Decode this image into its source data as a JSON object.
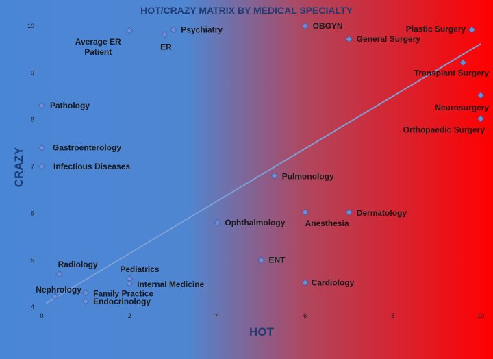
{
  "chart_data": {
    "type": "scatter",
    "title": "HOT/CRAZY MATRIX BY MEDICAL SPECIALTY",
    "xlabel": "HOT",
    "ylabel": "CRAZY",
    "xlim": [
      0,
      10
    ],
    "ylim": [
      4,
      10
    ],
    "x_ticks": [
      "0",
      "2",
      "4",
      "6",
      "8",
      "10"
    ],
    "y_ticks": [
      "4",
      "5",
      "6",
      "7",
      "8",
      "9",
      "10"
    ],
    "grid": false,
    "background_gradient": [
      "#4a86d6",
      "#ff0000"
    ],
    "point_color": "#6f8fd8",
    "trendline": {
      "x": [
        0.1,
        10
      ],
      "y": [
        4.08,
        9.62
      ]
    },
    "points": [
      {
        "name": "Average ER Patient",
        "x": 2,
        "y": 9.9
      },
      {
        "name": "ER",
        "x": 2.8,
        "y": 9.82
      },
      {
        "name": "Psychiatry",
        "x": 3,
        "y": 9.92
      },
      {
        "name": "OBGYN",
        "x": 6,
        "y": 10
      },
      {
        "name": "General Surgery",
        "x": 7,
        "y": 9.72
      },
      {
        "name": "Plastic Surgery",
        "x": 9.8,
        "y": 9.92
      },
      {
        "name": "Transplant Surgery",
        "x": 9.6,
        "y": 9.22
      },
      {
        "name": "Neurosurgery",
        "x": 10,
        "y": 8.52
      },
      {
        "name": "Orthopaedic Surgery",
        "x": 10,
        "y": 8.02
      },
      {
        "name": "Pathology",
        "x": 0,
        "y": 8.3
      },
      {
        "name": "Gastroenterology",
        "x": 0,
        "y": 7.4
      },
      {
        "name": "Infectious Diseases",
        "x": 0,
        "y": 7
      },
      {
        "name": "Pulmonology",
        "x": 5.3,
        "y": 6.8
      },
      {
        "name": "Anesthesia",
        "x": 6,
        "y": 6.02
      },
      {
        "name": "Dermatology",
        "x": 7,
        "y": 6.02
      },
      {
        "name": "Ophthalmology",
        "x": 4,
        "y": 5.8
      },
      {
        "name": "ENT",
        "x": 5,
        "y": 5
      },
      {
        "name": "Cardiology",
        "x": 6,
        "y": 4.52
      },
      {
        "name": "Radiology",
        "x": 0.4,
        "y": 4.7
      },
      {
        "name": "Pediatrics",
        "x": 2,
        "y": 4.6
      },
      {
        "name": "Internal Medicine",
        "x": 2,
        "y": 4.5
      },
      {
        "name": "Nephrology",
        "x": 0.3,
        "y": 4.22
      },
      {
        "name": "Family Practice",
        "x": 1,
        "y": 4.3
      },
      {
        "name": "Endocrinology",
        "x": 1,
        "y": 4.12
      }
    ]
  }
}
